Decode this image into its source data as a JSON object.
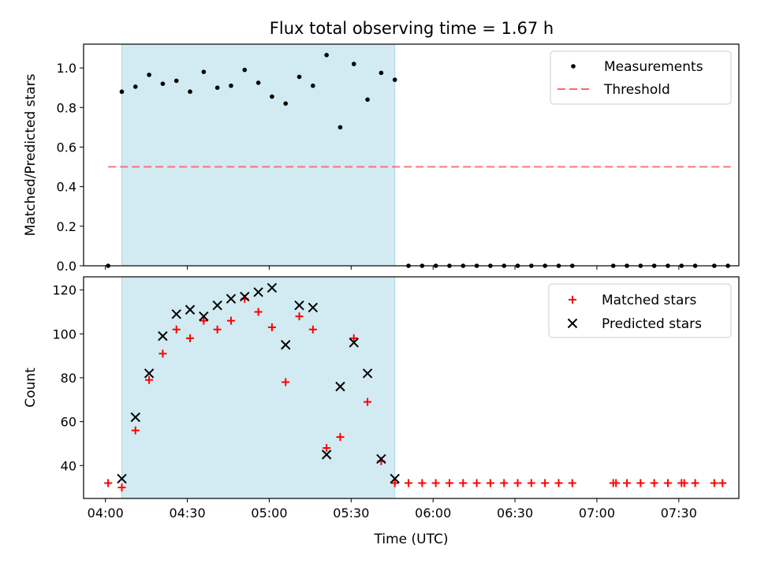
{
  "title": "Flux total observing time = 1.67 h",
  "colors": {
    "shade": "#add8e6",
    "measurements": "#000000",
    "threshold": "#ff6666",
    "matched": "#ff0000",
    "predicted": "#000000"
  },
  "chart_data": [
    {
      "type": "scatter",
      "name": "top",
      "ylabel": "Matched/Predicted stars",
      "xlabel": "",
      "ylim": [
        0,
        1.12
      ],
      "yticks": [
        0.0,
        0.2,
        0.4,
        0.6,
        0.8,
        1.0
      ],
      "ytick_labels": [
        "0.0",
        "0.2",
        "0.4",
        "0.6",
        "0.8",
        "1.0"
      ],
      "legend": {
        "position": "top-right",
        "entries": [
          {
            "label": "Measurements",
            "marker": "dot"
          },
          {
            "label": "Threshold",
            "marker": "dashed-line"
          }
        ]
      },
      "shaded_interval": [
        "04:06",
        "05:46"
      ],
      "threshold": {
        "y": 0.5,
        "x_start": "04:01",
        "x_end": "07:49"
      },
      "series": [
        {
          "name": "Measurements",
          "x": [
            "04:01",
            "04:06",
            "04:11",
            "04:16",
            "04:21",
            "04:26",
            "04:31",
            "04:36",
            "04:41",
            "04:46",
            "04:51",
            "04:56",
            "05:01",
            "05:06",
            "05:11",
            "05:16",
            "05:21",
            "05:26",
            "05:31",
            "05:36",
            "05:41",
            "05:46",
            "05:51",
            "05:56",
            "06:01",
            "06:06",
            "06:11",
            "06:16",
            "06:21",
            "06:26",
            "06:31",
            "06:36",
            "06:41",
            "06:46",
            "06:51",
            "07:06",
            "07:11",
            "07:16",
            "07:21",
            "07:26",
            "07:31",
            "07:36",
            "07:43",
            "07:48"
          ],
          "y": [
            0.0,
            0.88,
            0.905,
            0.965,
            0.92,
            0.935,
            0.88,
            0.98,
            0.9,
            0.91,
            0.99,
            0.925,
            0.855,
            0.82,
            0.955,
            0.91,
            1.065,
            0.7,
            1.02,
            0.84,
            0.975,
            0.94,
            0,
            0,
            0,
            0,
            0,
            0,
            0,
            0,
            0,
            0,
            0,
            0,
            0,
            0,
            0,
            0,
            0,
            0,
            0,
            0,
            0,
            0
          ]
        }
      ]
    },
    {
      "type": "scatter",
      "name": "bottom",
      "ylabel": "Count",
      "xlabel": "Time (UTC)",
      "ylim": [
        25,
        126
      ],
      "yticks": [
        40,
        60,
        80,
        100,
        120
      ],
      "ytick_labels": [
        "40",
        "60",
        "80",
        "100",
        "120"
      ],
      "xlim": [
        "03:52",
        "07:52"
      ],
      "xticks": [
        "04:00",
        "04:30",
        "05:00",
        "05:30",
        "06:00",
        "06:30",
        "07:00",
        "07:30"
      ],
      "xtick_labels": [
        "04:00",
        "04:30",
        "05:00",
        "05:30",
        "06:00",
        "06:30",
        "07:00",
        "07:30"
      ],
      "legend": {
        "position": "top-right",
        "entries": [
          {
            "label": "Matched stars",
            "marker": "plus"
          },
          {
            "label": "Predicted stars",
            "marker": "x"
          }
        ]
      },
      "shaded_interval": [
        "04:06",
        "05:46"
      ],
      "series": [
        {
          "name": "Matched stars",
          "x": [
            "04:01",
            "04:06",
            "04:11",
            "04:16",
            "04:21",
            "04:26",
            "04:31",
            "04:36",
            "04:41",
            "04:46",
            "04:51",
            "04:56",
            "05:01",
            "05:06",
            "05:11",
            "05:16",
            "05:21",
            "05:26",
            "05:31",
            "05:36",
            "05:41",
            "05:46",
            "05:51",
            "05:56",
            "06:01",
            "06:06",
            "06:11",
            "06:16",
            "06:21",
            "06:26",
            "06:31",
            "06:36",
            "06:41",
            "06:46",
            "06:51",
            "07:06",
            "07:07",
            "07:11",
            "07:16",
            "07:21",
            "07:26",
            "07:31",
            "07:32",
            "07:36",
            "07:43",
            "07:46"
          ],
          "y": [
            32,
            30,
            56,
            79,
            91,
            102,
            98,
            106,
            102,
            106,
            116,
            110,
            103,
            78,
            108,
            102,
            48,
            53,
            98,
            69,
            42,
            32,
            32,
            32,
            32,
            32,
            32,
            32,
            32,
            32,
            32,
            32,
            32,
            32,
            32,
            32,
            32,
            32,
            32,
            32,
            32,
            32,
            32,
            32,
            32,
            32
          ]
        },
        {
          "name": "Predicted stars",
          "x": [
            "04:06",
            "04:11",
            "04:16",
            "04:21",
            "04:26",
            "04:31",
            "04:36",
            "04:41",
            "04:46",
            "04:51",
            "04:56",
            "05:01",
            "05:06",
            "05:11",
            "05:16",
            "05:21",
            "05:26",
            "05:31",
            "05:36",
            "05:41",
            "05:46"
          ],
          "y": [
            34,
            62,
            82,
            99,
            109,
            111,
            108,
            113,
            116,
            117,
            119,
            121,
            95,
            113,
            112,
            45,
            76,
            96,
            82,
            43,
            34
          ]
        }
      ]
    }
  ]
}
